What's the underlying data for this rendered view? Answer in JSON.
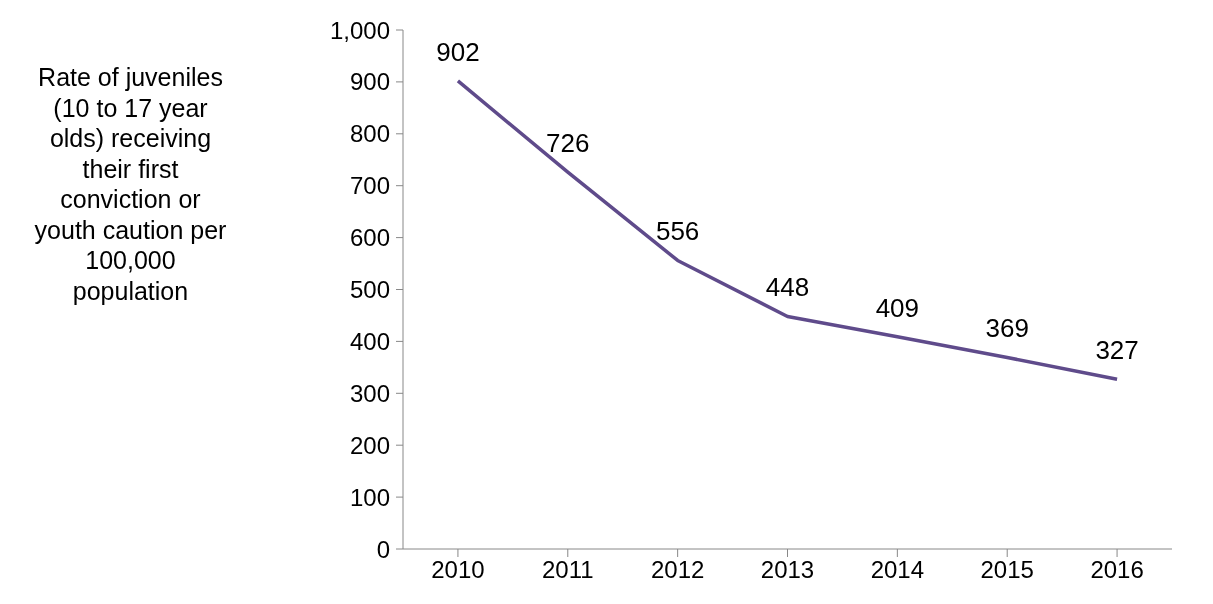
{
  "chart_data": {
    "type": "line",
    "ylabel": "Rate of juveniles (10 to 17 year olds) receiving their first conviction or youth caution per 100,000 population",
    "categories": [
      "2010",
      "2011",
      "2012",
      "2013",
      "2014",
      "2015",
      "2016"
    ],
    "series": [
      {
        "color": "#5f4b8b",
        "values": [
          902,
          726,
          556,
          448,
          409,
          369,
          327
        ]
      }
    ],
    "ylim": [
      0,
      1000
    ],
    "yticks": [
      0,
      100,
      200,
      300,
      400,
      500,
      600,
      700,
      800,
      900,
      {
        "value": 1000,
        "label": "1,000"
      }
    ],
    "data_labels": true,
    "marker": "none",
    "line_style": "solid"
  }
}
